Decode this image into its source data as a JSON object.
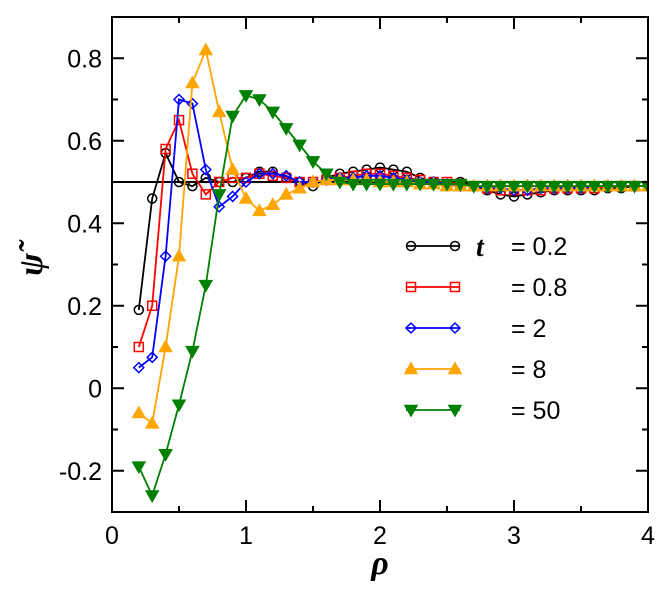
{
  "chart_data": {
    "type": "line",
    "xlabel": "ρ",
    "ylabel": "ψ̃",
    "xlim": [
      0,
      4
    ],
    "ylim": [
      -0.3,
      0.9
    ],
    "xticks": [
      0,
      1,
      2,
      3,
      4
    ],
    "xtick_labels": [
      "0",
      "1",
      "2",
      "3",
      "4"
    ],
    "yticks": [
      -0.2,
      0,
      0.2,
      0.4,
      0.6,
      0.8
    ],
    "ytick_labels": [
      "-0.2",
      "0",
      "0.2",
      "0.4",
      "0.6",
      "0.8"
    ],
    "reference_line": {
      "y": 0.5,
      "color": "#000000"
    },
    "grid": false,
    "legend": {
      "position": "right",
      "variable": "t",
      "labels": [
        "= 0.2",
        "= 0.8",
        "= 2",
        "= 8",
        "= 50"
      ]
    },
    "series": [
      {
        "name": "0.2",
        "color": "#000000",
        "marker": "circle",
        "x": [
          0.2,
          0.3,
          0.4,
          0.5,
          0.6,
          0.7,
          0.8,
          0.9,
          1.0,
          1.1,
          1.2,
          1.3,
          1.4,
          1.5,
          1.6,
          1.7,
          1.8,
          1.9,
          2.0,
          2.1,
          2.2,
          2.3,
          2.4,
          2.5,
          2.6,
          2.7,
          2.8,
          2.9,
          3.0,
          3.1,
          3.2,
          3.3,
          3.4,
          3.5,
          3.6,
          3.7,
          3.8,
          3.9,
          4.0
        ],
        "y": [
          0.19,
          0.46,
          0.57,
          0.5,
          0.49,
          0.51,
          0.5,
          0.5,
          0.51,
          0.525,
          0.525,
          0.51,
          0.5,
          0.49,
          0.51,
          0.52,
          0.525,
          0.53,
          0.535,
          0.53,
          0.525,
          0.51,
          0.5,
          0.495,
          0.5,
          0.49,
          0.48,
          0.47,
          0.465,
          0.47,
          0.475,
          0.48,
          0.48,
          0.48,
          0.48,
          0.485,
          0.485,
          0.49,
          0.49
        ]
      },
      {
        "name": "0.8",
        "color": "#ff0000",
        "marker": "square",
        "x": [
          0.2,
          0.3,
          0.4,
          0.5,
          0.6,
          0.7,
          0.8,
          0.9,
          1.0,
          1.1,
          1.2,
          1.3,
          1.4,
          1.5,
          1.6,
          1.7,
          1.8,
          1.9,
          2.0,
          2.1,
          2.2,
          2.3,
          2.4,
          2.5,
          2.6,
          2.7,
          2.8,
          2.9,
          3.0,
          3.1,
          3.2,
          3.3,
          3.4,
          3.5,
          3.6,
          3.7,
          3.8,
          3.9,
          4.0
        ],
        "y": [
          0.1,
          0.2,
          0.58,
          0.65,
          0.52,
          0.47,
          0.5,
          0.51,
          0.51,
          0.52,
          0.515,
          0.51,
          0.5,
          0.5,
          0.505,
          0.51,
          0.515,
          0.52,
          0.52,
          0.515,
          0.51,
          0.505,
          0.5,
          0.5,
          0.495,
          0.49,
          0.485,
          0.48,
          0.48,
          0.48,
          0.48,
          0.485,
          0.485,
          0.485,
          0.485,
          0.49,
          0.49,
          0.49,
          0.49
        ]
      },
      {
        "name": "2",
        "color": "#0000ff",
        "marker": "diamond",
        "x": [
          0.2,
          0.3,
          0.4,
          0.5,
          0.6,
          0.7,
          0.8,
          0.9,
          1.0,
          1.1,
          1.2,
          1.3,
          1.4,
          1.5,
          1.6,
          1.7,
          1.8,
          1.9,
          2.0,
          2.1,
          2.2,
          2.3,
          2.4,
          2.5,
          2.6,
          2.7,
          2.8,
          2.9,
          3.0,
          3.1,
          3.2,
          3.3,
          3.4,
          3.5,
          3.6,
          3.7,
          3.8,
          3.9,
          4.0
        ],
        "y": [
          0.05,
          0.075,
          0.32,
          0.7,
          0.69,
          0.53,
          0.44,
          0.465,
          0.5,
          0.52,
          0.52,
          0.515,
          0.5,
          0.5,
          0.505,
          0.51,
          0.51,
          0.515,
          0.515,
          0.51,
          0.505,
          0.5,
          0.5,
          0.495,
          0.49,
          0.49,
          0.485,
          0.485,
          0.48,
          0.48,
          0.485,
          0.485,
          0.485,
          0.485,
          0.49,
          0.49,
          0.49,
          0.49,
          0.49
        ]
      },
      {
        "name": "8",
        "color": "#ffa500",
        "marker": "triangle-up",
        "x": [
          0.2,
          0.3,
          0.4,
          0.5,
          0.6,
          0.7,
          0.8,
          0.9,
          1.0,
          1.1,
          1.2,
          1.3,
          1.4,
          1.5,
          1.6,
          1.7,
          1.8,
          1.9,
          2.0,
          2.1,
          2.2,
          2.3,
          2.4,
          2.5,
          2.6,
          2.7,
          2.8,
          2.9,
          3.0,
          3.1,
          3.2,
          3.3,
          3.4,
          3.5,
          3.6,
          3.7,
          3.8,
          3.9,
          4.0
        ],
        "y": [
          -0.06,
          -0.085,
          0.1,
          0.32,
          0.74,
          0.82,
          0.67,
          0.53,
          0.46,
          0.43,
          0.445,
          0.47,
          0.485,
          0.5,
          0.505,
          0.505,
          0.505,
          0.505,
          0.5,
          0.5,
          0.5,
          0.495,
          0.495,
          0.49,
          0.49,
          0.49,
          0.49,
          0.49,
          0.49,
          0.49,
          0.49,
          0.49,
          0.49,
          0.49,
          0.49,
          0.49,
          0.49,
          0.49,
          0.49
        ]
      },
      {
        "name": "50",
        "color": "#008000",
        "marker": "triangle-down",
        "x": [
          0.2,
          0.3,
          0.4,
          0.5,
          0.6,
          0.7,
          0.8,
          0.9,
          1.0,
          1.1,
          1.2,
          1.3,
          1.4,
          1.5,
          1.6,
          1.7,
          1.8,
          1.9,
          2.0,
          2.1,
          2.2,
          2.3,
          2.4,
          2.5,
          2.6,
          2.7,
          2.8,
          2.9,
          3.0,
          3.1,
          3.2,
          3.3,
          3.4,
          3.5,
          3.6,
          3.7,
          3.8,
          3.9,
          4.0
        ],
        "y": [
          -0.19,
          -0.26,
          -0.16,
          -0.04,
          0.09,
          0.25,
          0.47,
          0.66,
          0.71,
          0.7,
          0.67,
          0.63,
          0.59,
          0.55,
          0.52,
          0.5,
          0.495,
          0.495,
          0.495,
          0.495,
          0.495,
          0.495,
          0.495,
          0.495,
          0.495,
          0.49,
          0.49,
          0.49,
          0.49,
          0.49,
          0.49,
          0.49,
          0.49,
          0.49,
          0.49,
          0.49,
          0.49,
          0.49,
          0.49
        ]
      }
    ]
  }
}
